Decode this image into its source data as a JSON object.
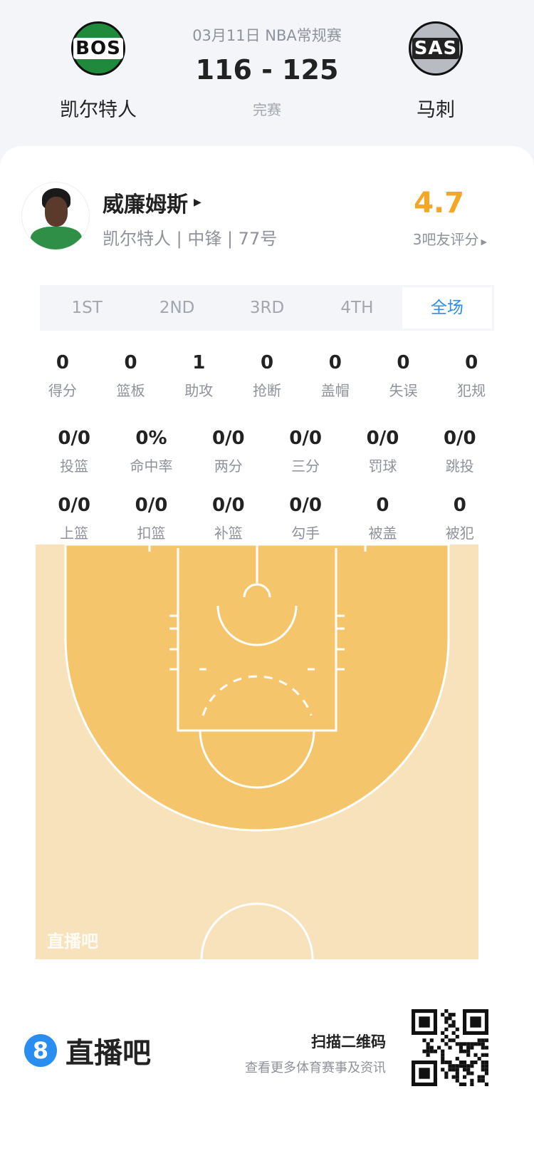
{
  "header": {
    "date_league": "03月11日 NBA常规赛",
    "score": "116 - 125",
    "status": "完赛",
    "home": {
      "abbr": "BOS",
      "name": "凯尔特人",
      "color": "#1f8a3c"
    },
    "away": {
      "abbr": "SAS",
      "name": "马刺",
      "color": "#b8bcc2"
    }
  },
  "player": {
    "name": "威廉姆斯",
    "info": "凯尔特人 | 中锋 | 77号",
    "rating": "4.7",
    "rating_label": "3吧友评分",
    "rating_color": "#f5a623"
  },
  "tabs": [
    {
      "label": "1ST"
    },
    {
      "label": "2ND"
    },
    {
      "label": "3RD"
    },
    {
      "label": "4TH"
    },
    {
      "label": "全场",
      "active": true
    }
  ],
  "stats_row1": [
    {
      "v": "0",
      "l": "得分"
    },
    {
      "v": "0",
      "l": "篮板"
    },
    {
      "v": "1",
      "l": "助攻"
    },
    {
      "v": "0",
      "l": "抢断"
    },
    {
      "v": "0",
      "l": "盖帽"
    },
    {
      "v": "0",
      "l": "失误"
    },
    {
      "v": "0",
      "l": "犯规"
    }
  ],
  "stats_row2": [
    {
      "v": "0/0",
      "l": "投篮"
    },
    {
      "v": "0%",
      "l": "命中率"
    },
    {
      "v": "0/0",
      "l": "两分"
    },
    {
      "v": "0/0",
      "l": "三分"
    },
    {
      "v": "0/0",
      "l": "罚球"
    },
    {
      "v": "0/0",
      "l": "跳投"
    }
  ],
  "stats_row3": [
    {
      "v": "0/0",
      "l": "上篮"
    },
    {
      "v": "0/0",
      "l": "扣篮"
    },
    {
      "v": "0/0",
      "l": "补篮"
    },
    {
      "v": "0/0",
      "l": "勾手"
    },
    {
      "v": "0",
      "l": "被盖"
    },
    {
      "v": "0",
      "l": "被犯"
    }
  ],
  "court": {
    "watermark": "直播吧",
    "outer_color": "#f8e2bb",
    "inner_color": "#f5c56c"
  },
  "footer": {
    "brand": "直播吧",
    "brand_color": "#2a8df0",
    "qr_title": "扫描二维码",
    "qr_sub": "查看更多体育赛事及资讯"
  }
}
